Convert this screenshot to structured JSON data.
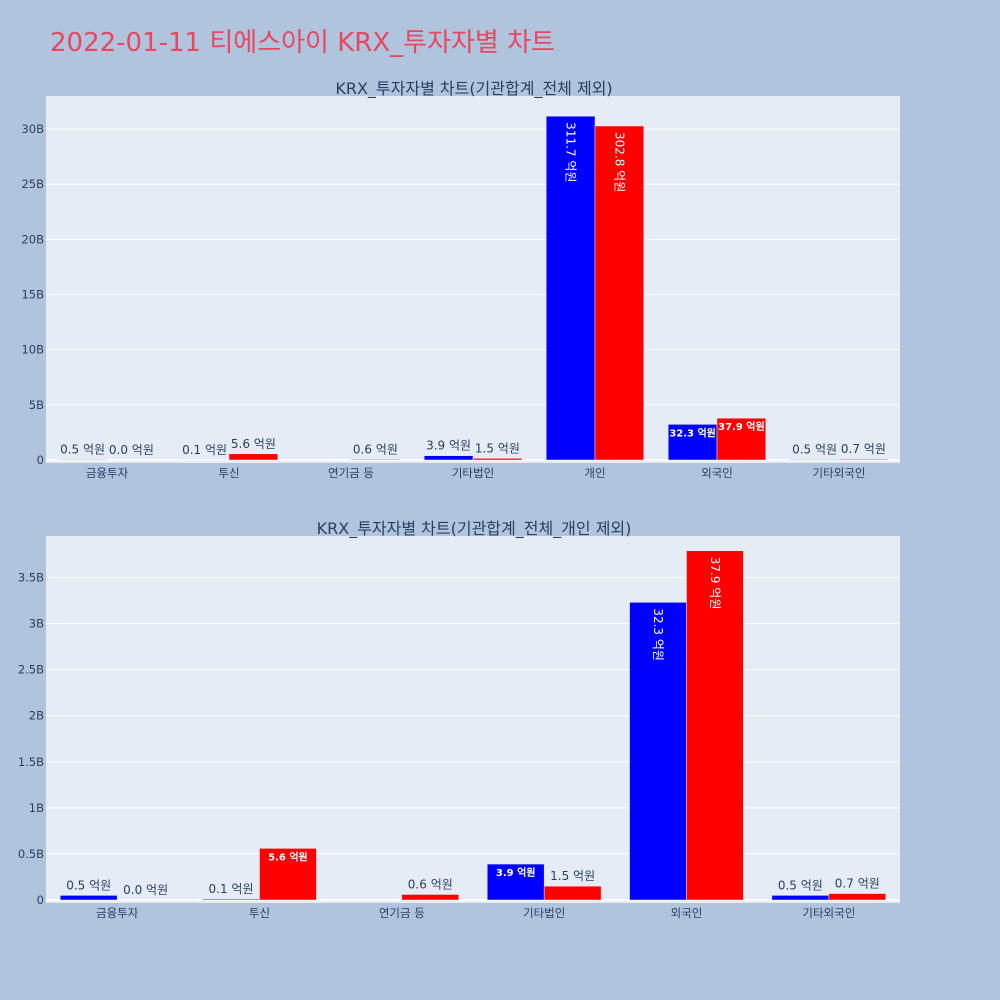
{
  "page": {
    "title": "2022-01-11 티에스아이 KRX_투자자별 차트"
  },
  "colors": {
    "background": "#b0c4de",
    "plot_bg": "#e5ecf6",
    "buy": "#0000ff",
    "sell": "#ff0000",
    "title": "#e8475f"
  },
  "chart_data": [
    {
      "type": "bar",
      "title": "KRX_투자자별 차트(기관합계_전체 제외)",
      "categories": [
        "금융투자",
        "투신",
        "연기금 등",
        "기타법인",
        "개인",
        "외국인",
        "기타외국인"
      ],
      "series": [
        {
          "color": "#0000ff",
          "values": [
            0.05,
            0.01,
            0.0,
            0.39,
            31.17,
            3.23,
            0.05
          ],
          "labels": [
            "0.5 억원",
            "0.1 억원",
            "",
            "3.9 억원",
            "311.7 억원",
            "32.3 억원",
            "0.5 억원"
          ]
        },
        {
          "color": "#ff0000",
          "values": [
            0.0,
            0.56,
            0.06,
            0.15,
            30.28,
            3.79,
            0.07
          ],
          "labels": [
            "0.0 억원",
            "5.6 억원",
            "0.6 억원",
            "1.5 억원",
            "302.8 억원",
            "37.9 억원",
            "0.7 억원"
          ]
        }
      ],
      "yunit": "B",
      "ylim": [
        0,
        33
      ],
      "yticks": [
        0,
        5,
        10,
        15,
        20,
        25,
        30
      ],
      "ytick_labels": [
        "0",
        "5B",
        "10B",
        "15B",
        "20B",
        "25B",
        "30B"
      ],
      "grid": true
    },
    {
      "type": "bar",
      "title": "KRX_투자자별 차트(기관합계_전체_개인 제외)",
      "categories": [
        "금융투자",
        "투신",
        "연기금 등",
        "기타법인",
        "외국인",
        "기타외국인"
      ],
      "series": [
        {
          "color": "#0000ff",
          "values": [
            0.05,
            0.01,
            0.0,
            0.39,
            3.23,
            0.05
          ],
          "labels": [
            "0.5 억원",
            "0.1 억원",
            "",
            "3.9 억원",
            "32.3 억원",
            "0.5 억원"
          ]
        },
        {
          "color": "#ff0000",
          "values": [
            0.0,
            0.56,
            0.06,
            0.15,
            3.79,
            0.07
          ],
          "labels": [
            "0.0 억원",
            "5.6 억원",
            "0.6 억원",
            "1.5 억원",
            "37.9 억원",
            "0.7 억원"
          ]
        }
      ],
      "yunit": "B",
      "ylim": [
        0,
        3.95
      ],
      "yticks": [
        0,
        0.5,
        1,
        1.5,
        2,
        2.5,
        3,
        3.5
      ],
      "ytick_labels": [
        "0",
        "0.5B",
        "1B",
        "1.5B",
        "2B",
        "2.5B",
        "3B",
        "3.5B"
      ],
      "grid": true
    }
  ]
}
